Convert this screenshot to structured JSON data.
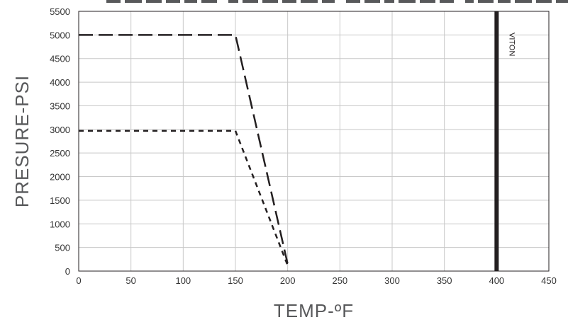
{
  "chart_data": {
    "type": "line",
    "title": "",
    "xlabel": "TEMP-ºF",
    "ylabel": "PRESURE-PSI",
    "xlim": [
      0,
      450
    ],
    "ylim": [
      0,
      5500
    ],
    "xticks": [
      0,
      50,
      100,
      150,
      200,
      250,
      300,
      350,
      400,
      450
    ],
    "yticks": [
      0,
      500,
      1000,
      1500,
      2000,
      2500,
      3000,
      3500,
      4000,
      4500,
      5000,
      5500
    ],
    "grid": true,
    "series": [
      {
        "style": "long-dash",
        "color": "#231f20",
        "x": [
          0,
          150,
          200
        ],
        "y": [
          5000,
          5000,
          150
        ]
      },
      {
        "style": "short-dash",
        "color": "#231f20",
        "x": [
          0,
          150,
          200
        ],
        "y": [
          2970,
          2970,
          120
        ]
      }
    ],
    "annotations": [
      {
        "type": "vertical-line",
        "x": 400,
        "label": "VITON",
        "color": "#231f20"
      }
    ],
    "cut_off_title_visible": true
  }
}
